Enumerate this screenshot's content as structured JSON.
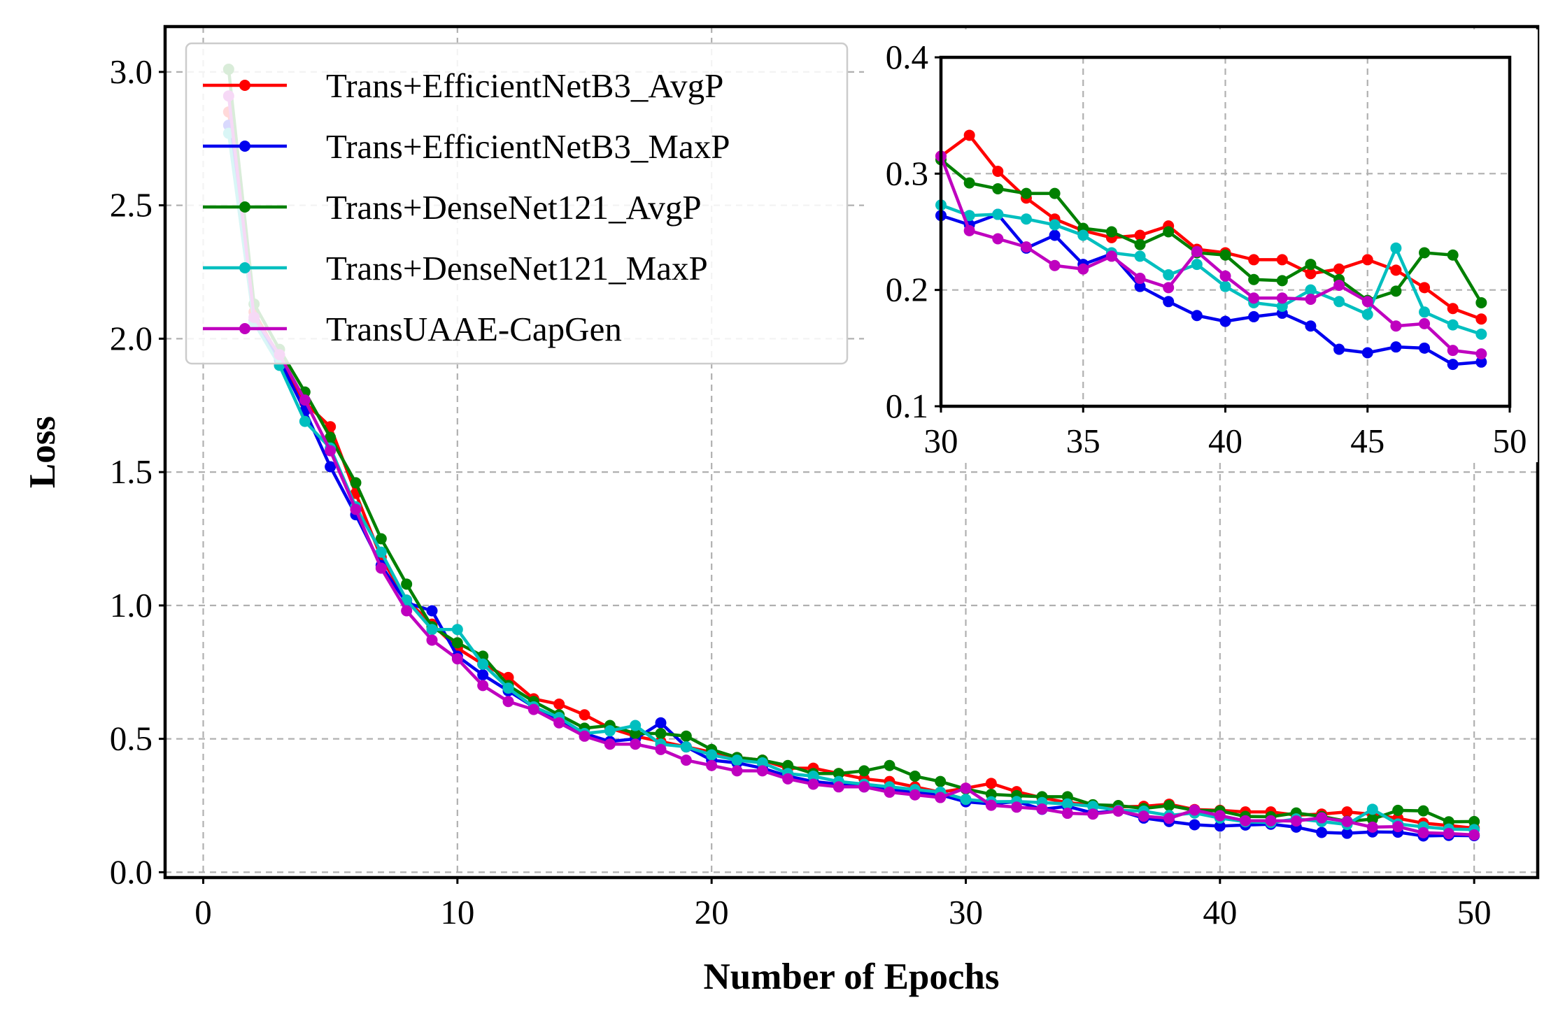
{
  "chart_data": [
    {
      "type": "line",
      "role": "main",
      "title": "",
      "xlabel": "Number of Epochs",
      "ylabel": "Loss",
      "xlim": [
        -1.5,
        52.5
      ],
      "ylim": [
        -0.02,
        3.17
      ],
      "xticks": [
        0,
        10,
        20,
        30,
        40,
        50
      ],
      "xtick_labels": [
        "0",
        "10",
        "20",
        "30",
        "40",
        "50"
      ],
      "yticks": [
        0.0,
        0.5,
        1.0,
        1.5,
        2.0,
        2.5,
        3.0
      ],
      "ytick_labels": [
        "0.0",
        "0.5",
        "1.0",
        "1.5",
        "2.0",
        "2.5",
        "3.0"
      ],
      "grid": true,
      "legend_position": "upper-left",
      "x": [
        1,
        2,
        3,
        4,
        5,
        6,
        7,
        8,
        9,
        10,
        11,
        12,
        13,
        14,
        15,
        16,
        17,
        18,
        19,
        20,
        21,
        22,
        23,
        24,
        25,
        26,
        27,
        28,
        29,
        30,
        31,
        32,
        33,
        34,
        35,
        36,
        37,
        38,
        39,
        40,
        41,
        42,
        43,
        44,
        45,
        46,
        47,
        48,
        49,
        50
      ],
      "series": [
        {
          "name": "Trans+EfficientNetB3_AvgP",
          "color": "#ff0000",
          "values": [
            2.85,
            2.1,
            1.93,
            1.76,
            1.67,
            1.42,
            1.18,
            1.02,
            0.93,
            0.84,
            0.78,
            0.73,
            0.65,
            0.63,
            0.59,
            0.54,
            0.51,
            0.49,
            0.47,
            0.45,
            0.43,
            0.42,
            0.39,
            0.39,
            0.37,
            0.35,
            0.34,
            0.32,
            0.3,
            0.315,
            0.333,
            0.302,
            0.279,
            0.261,
            0.251,
            0.245,
            0.247,
            0.255,
            0.235,
            0.232,
            0.226,
            0.226,
            0.214,
            0.218,
            0.226,
            0.217,
            0.202,
            0.184,
            0.175,
            0.165
          ]
        },
        {
          "name": "Trans+EfficientNetB3_MaxP",
          "color": "#0000ee",
          "values": [
            2.8,
            2.07,
            1.92,
            1.73,
            1.52,
            1.34,
            1.15,
            1.01,
            0.98,
            0.81,
            0.74,
            0.68,
            0.62,
            0.57,
            0.52,
            0.49,
            0.5,
            0.56,
            0.47,
            0.42,
            0.41,
            0.39,
            0.36,
            0.34,
            0.33,
            0.32,
            0.31,
            0.3,
            0.29,
            0.264,
            0.256,
            0.265,
            0.236,
            0.247,
            0.222,
            0.231,
            0.203,
            0.19,
            0.178,
            0.173,
            0.177,
            0.18,
            0.169,
            0.149,
            0.146,
            0.151,
            0.15,
            0.136,
            0.138,
            0.137
          ]
        },
        {
          "name": "Trans+DenseNet121_AvgP",
          "color": "#008000",
          "values": [
            3.01,
            2.13,
            1.96,
            1.8,
            1.63,
            1.46,
            1.25,
            1.08,
            0.92,
            0.86,
            0.81,
            0.7,
            0.64,
            0.59,
            0.54,
            0.55,
            0.52,
            0.52,
            0.51,
            0.46,
            0.43,
            0.42,
            0.4,
            0.37,
            0.37,
            0.38,
            0.4,
            0.36,
            0.34,
            0.312,
            0.292,
            0.287,
            0.283,
            0.283,
            0.253,
            0.25,
            0.239,
            0.25,
            0.232,
            0.23,
            0.209,
            0.208,
            0.222,
            0.209,
            0.191,
            0.199,
            0.232,
            0.23,
            0.189,
            0.19
          ]
        },
        {
          "name": "Trans+DenseNet121_MaxP",
          "color": "#00bfbf",
          "values": [
            2.77,
            2.06,
            1.9,
            1.69,
            1.59,
            1.37,
            1.2,
            1.02,
            0.91,
            0.91,
            0.78,
            0.69,
            0.62,
            0.58,
            0.52,
            0.53,
            0.55,
            0.48,
            0.47,
            0.44,
            0.42,
            0.41,
            0.37,
            0.36,
            0.34,
            0.33,
            0.32,
            0.31,
            0.3,
            0.273,
            0.264,
            0.265,
            0.261,
            0.256,
            0.247,
            0.232,
            0.229,
            0.213,
            0.222,
            0.203,
            0.189,
            0.186,
            0.2,
            0.19,
            0.179,
            0.236,
            0.181,
            0.17,
            0.162,
            0.16
          ]
        },
        {
          "name": "TransUAAE-CapGen",
          "color": "#bf00bf",
          "values": [
            2.91,
            2.08,
            1.94,
            1.77,
            1.58,
            1.36,
            1.14,
            0.98,
            0.87,
            0.8,
            0.7,
            0.64,
            0.61,
            0.56,
            0.51,
            0.48,
            0.48,
            0.46,
            0.42,
            0.4,
            0.38,
            0.38,
            0.35,
            0.33,
            0.32,
            0.32,
            0.3,
            0.29,
            0.28,
            0.315,
            0.251,
            0.244,
            0.237,
            0.221,
            0.218,
            0.229,
            0.21,
            0.202,
            0.233,
            0.212,
            0.193,
            0.193,
            0.192,
            0.204,
            0.19,
            0.169,
            0.171,
            0.148,
            0.145,
            0.14
          ]
        }
      ]
    },
    {
      "type": "line",
      "role": "inset",
      "title": "",
      "xlabel": "",
      "ylabel": "",
      "xlim": [
        30,
        50
      ],
      "ylim": [
        0.1,
        0.4
      ],
      "xticks": [
        30,
        35,
        40,
        45,
        50
      ],
      "xtick_labels": [
        "30",
        "35",
        "40",
        "45",
        "50"
      ],
      "yticks": [
        0.1,
        0.2,
        0.3,
        0.4
      ],
      "ytick_labels": [
        "0.1",
        "0.2",
        "0.3",
        "0.4"
      ],
      "grid": true,
      "legend_position": "none",
      "x": [
        30,
        31,
        32,
        33,
        34,
        35,
        36,
        37,
        38,
        39,
        40,
        41,
        42,
        43,
        44,
        45,
        46,
        47,
        48,
        49
      ],
      "series": [
        {
          "name": "Trans+EfficientNetB3_AvgP",
          "color": "#ff0000",
          "values": [
            0.315,
            0.333,
            0.302,
            0.279,
            0.261,
            0.251,
            0.245,
            0.247,
            0.255,
            0.235,
            0.232,
            0.226,
            0.226,
            0.214,
            0.218,
            0.226,
            0.217,
            0.202,
            0.184,
            0.175
          ]
        },
        {
          "name": "Trans+EfficientNetB3_MaxP",
          "color": "#0000ee",
          "values": [
            0.264,
            0.256,
            0.265,
            0.236,
            0.247,
            0.222,
            0.231,
            0.203,
            0.19,
            0.178,
            0.173,
            0.177,
            0.18,
            0.169,
            0.149,
            0.146,
            0.151,
            0.15,
            0.136,
            0.138
          ]
        },
        {
          "name": "Trans+DenseNet121_AvgP",
          "color": "#008000",
          "values": [
            0.312,
            0.292,
            0.287,
            0.283,
            0.283,
            0.253,
            0.25,
            0.239,
            0.25,
            0.232,
            0.23,
            0.209,
            0.208,
            0.222,
            0.209,
            0.191,
            0.199,
            0.232,
            0.23,
            0.189
          ]
        },
        {
          "name": "Trans+DenseNet121_MaxP",
          "color": "#00bfbf",
          "values": [
            0.273,
            0.264,
            0.265,
            0.261,
            0.256,
            0.247,
            0.232,
            0.229,
            0.213,
            0.222,
            0.203,
            0.189,
            0.186,
            0.2,
            0.19,
            0.179,
            0.236,
            0.181,
            0.17,
            0.162
          ]
        },
        {
          "name": "TransUAAE-CapGen",
          "color": "#bf00bf",
          "values": [
            0.315,
            0.251,
            0.244,
            0.237,
            0.221,
            0.218,
            0.229,
            0.21,
            0.202,
            0.233,
            0.212,
            0.193,
            0.193,
            0.192,
            0.204,
            0.19,
            0.169,
            0.171,
            0.148,
            0.145
          ]
        }
      ]
    }
  ]
}
